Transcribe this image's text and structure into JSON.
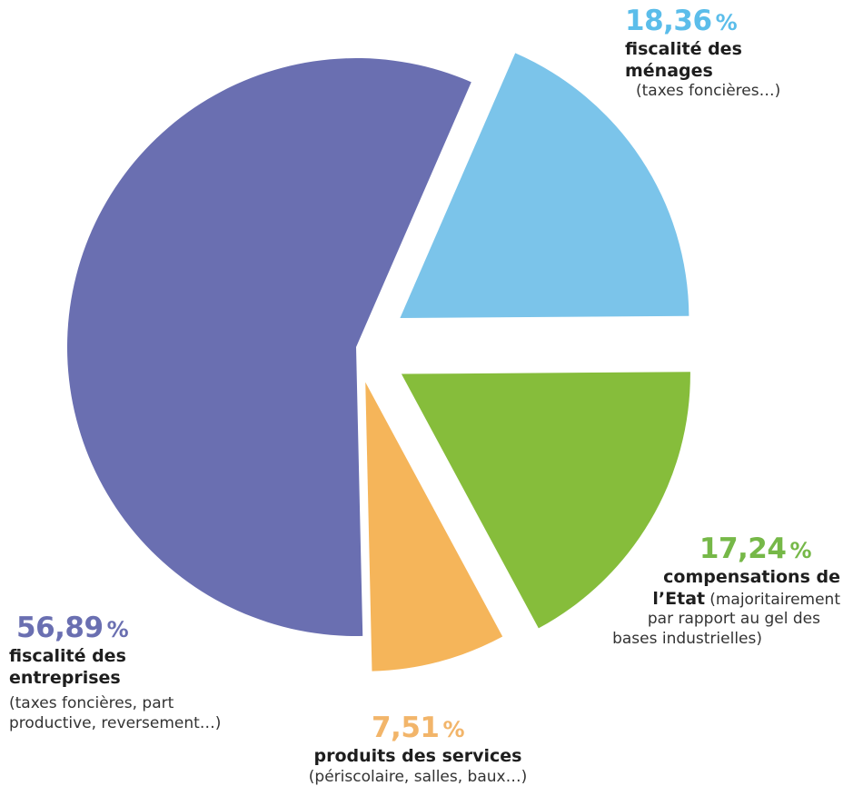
{
  "chart_data": {
    "type": "pie",
    "slices": [
      {
        "key": "menages",
        "value": 18.36,
        "value_label": "18,36",
        "unit": "%",
        "category": "fiscalité des ménages",
        "detail": "(taxes foncières…)",
        "color": "#7bc4ea"
      },
      {
        "key": "etat",
        "value": 17.24,
        "value_label": "17,24",
        "unit": "%",
        "category": "compensations de l’Etat",
        "category_lines": [
          "compensations de",
          "l’Etat"
        ],
        "detail": "(majoritairement par rapport au gel des bases industrielles)",
        "detail_lines": [
          "(majoritairement",
          "par rapport au gel des",
          "bases industrielles)"
        ],
        "color": "#86bd3b"
      },
      {
        "key": "services",
        "value": 7.51,
        "value_label": "7,51",
        "unit": "%",
        "category": "produits des services",
        "detail": "(périscolaire, salles, baux…)",
        "color": "#f5b55a"
      },
      {
        "key": "entreprises",
        "value": 56.89,
        "value_label": "56,89",
        "unit": "%",
        "category": "fiscalité des entreprises",
        "category_lines": [
          "fiscalité des",
          "entreprises"
        ],
        "detail": "(taxes foncières, part productive, reversement…)",
        "detail_lines": [
          "(taxes foncières, part",
          "productive, reversement…)"
        ],
        "color": "#6a6fb1"
      }
    ],
    "label_colors": {
      "menages": "#5bbdea",
      "etat": "#76b848",
      "services": "#f2b56a",
      "entreprises": "#6a6fb1"
    }
  }
}
